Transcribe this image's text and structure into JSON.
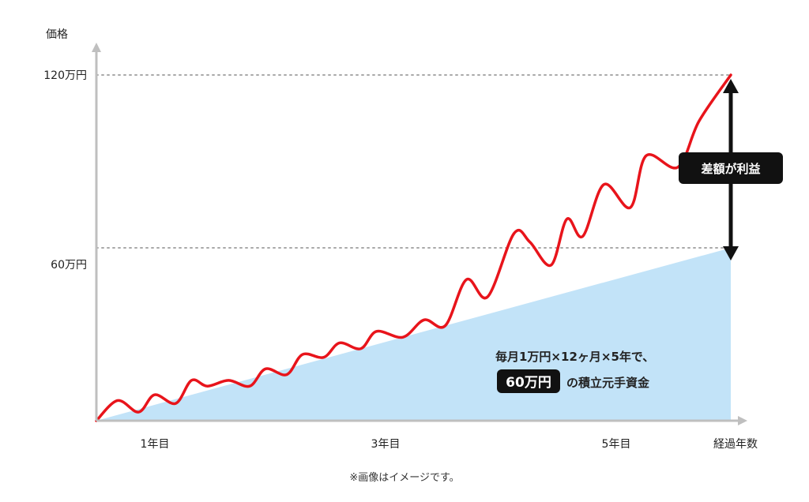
{
  "chart_data": {
    "type": "area",
    "ylabel": "価格",
    "xlabel": "経過年数",
    "x_ticks": [
      "1年目",
      "3年目",
      "5年目"
    ],
    "y_ticks": [
      "60万円",
      "120万円"
    ],
    "ylim": [
      0,
      120
    ],
    "xlim_years": [
      0,
      6
    ],
    "series": [
      {
        "type": "area",
        "color": "#c2e3f8",
        "x": [
          0,
          6
        ],
        "y": [
          0,
          60
        ]
      },
      {
        "type": "line",
        "color": "#e8141b",
        "x": [
          0,
          0.2,
          0.4,
          0.55,
          0.75,
          0.9,
          1.05,
          1.25,
          1.45,
          1.6,
          1.8,
          1.95,
          2.15,
          2.3,
          2.5,
          2.65,
          2.9,
          3.1,
          3.3,
          3.5,
          3.7,
          3.95,
          4.1,
          4.3,
          4.45,
          4.6,
          4.8,
          5.05,
          5.2,
          5.5,
          5.7,
          6.0
        ],
        "y": [
          0,
          7,
          3,
          9,
          6,
          14,
          12,
          14,
          12,
          18,
          16,
          23,
          22,
          27,
          25,
          31,
          29,
          35,
          33,
          49,
          43,
          65,
          62,
          54,
          70,
          64,
          82,
          74,
          92,
          88,
          104,
          120
        ]
      }
    ],
    "annotations": {
      "gap_label": "差額が利益",
      "principal_line1": "毎月1万円×12ヶ月×5年で、",
      "principal_badge": "60万円",
      "principal_line2": "の積立元手資金"
    }
  },
  "footnote": "※画像はイメージです。"
}
